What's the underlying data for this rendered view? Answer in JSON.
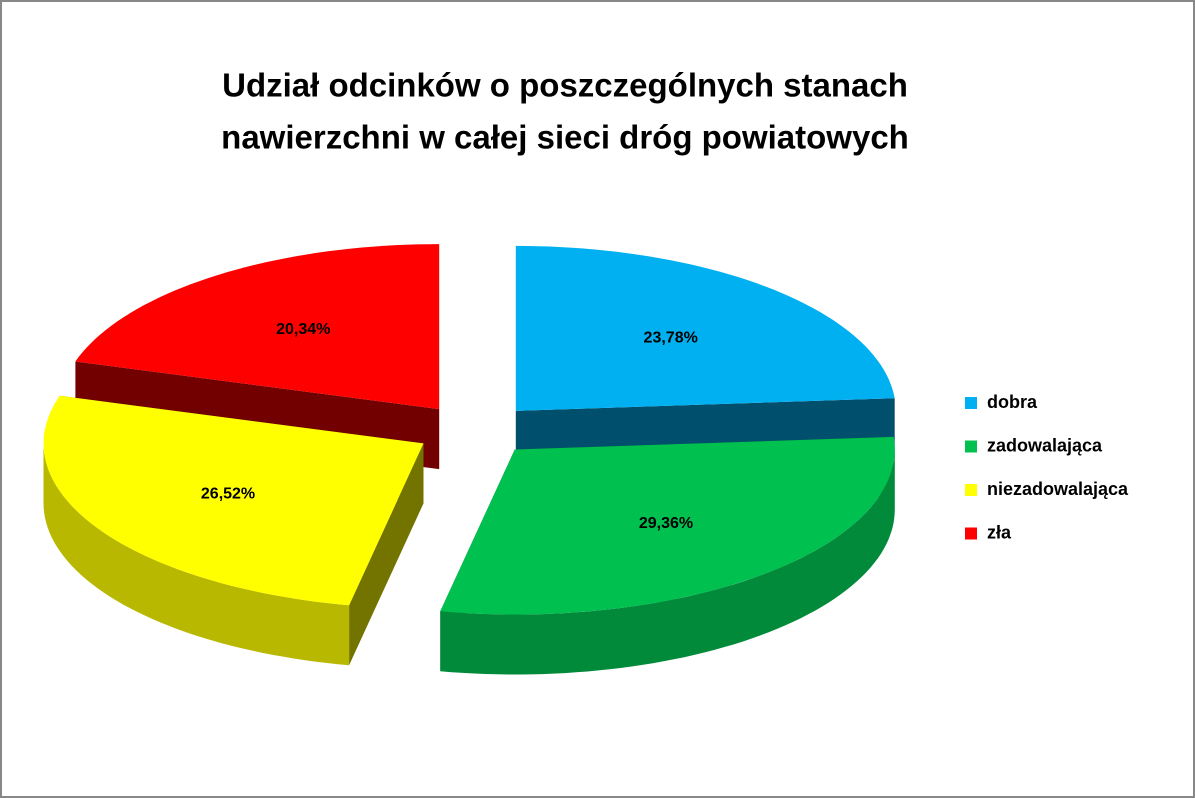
{
  "chart_data": {
    "type": "pie",
    "title": [
      "Udział  odcinków o poszczególnych stanach",
      "nawierzchni w całej sieci dróg powiatowych"
    ],
    "categories": [
      "dobra",
      "zadowalająca",
      "niezadowalająca",
      "zła"
    ],
    "values": [
      23.78,
      29.36,
      26.52,
      20.34
    ],
    "value_labels": [
      "23,78%",
      "29,36%",
      "26,52%",
      "20,34%"
    ],
    "colors": [
      "#00b0f0",
      "#00c050",
      "#ffff00",
      "#ff0000"
    ],
    "legend": "right"
  }
}
